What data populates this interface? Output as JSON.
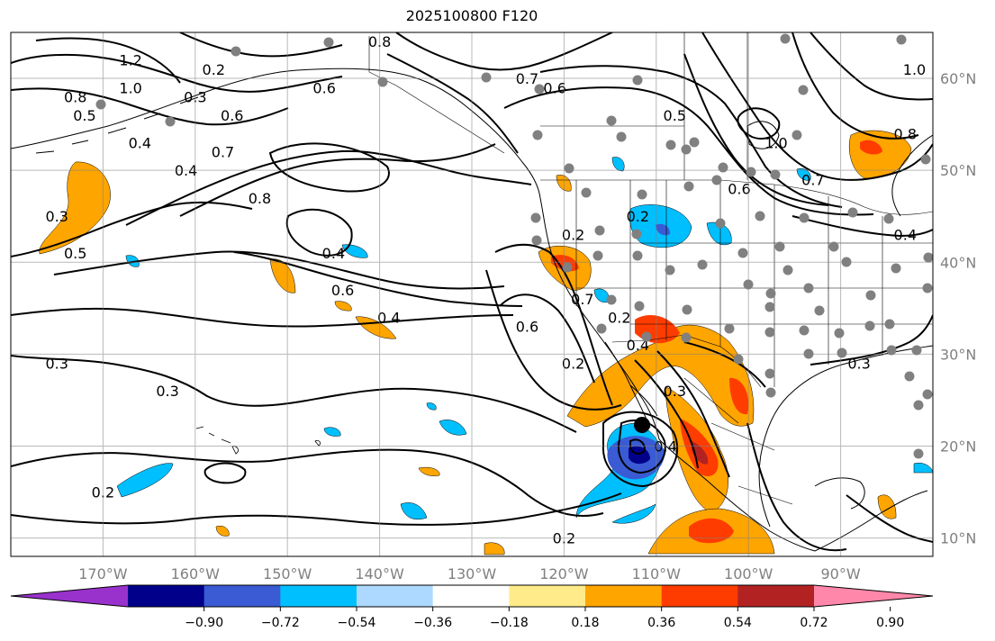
{
  "title": "2025100800 F120",
  "map": {
    "lon_min": -180,
    "lon_max": -80,
    "lat_min": 8,
    "lat_max": 65,
    "lon_ticks": [
      {
        "value": -170,
        "label": "170°W"
      },
      {
        "value": -160,
        "label": "160°W"
      },
      {
        "value": -150,
        "label": "150°W"
      },
      {
        "value": -140,
        "label": "140°W"
      },
      {
        "value": -130,
        "label": "130°W"
      },
      {
        "value": -120,
        "label": "120°W"
      },
      {
        "value": -110,
        "label": "110°W"
      },
      {
        "value": -100,
        "label": "100°W"
      },
      {
        "value": -90,
        "label": "90°W"
      }
    ],
    "lat_ticks": [
      {
        "value": 10,
        "label": "10°N"
      },
      {
        "value": 20,
        "label": "20°N"
      },
      {
        "value": 30,
        "label": "30°N"
      },
      {
        "value": 40,
        "label": "40°N"
      },
      {
        "value": 50,
        "label": "50°N"
      },
      {
        "value": 60,
        "label": "60°N"
      }
    ],
    "grid": true,
    "contour_labels": [
      {
        "text": "0.3",
        "lon": -175,
        "lat": 45
      },
      {
        "text": "0.5",
        "lon": -173,
        "lat": 41
      },
      {
        "text": "0.6",
        "lon": -156,
        "lat": 56
      },
      {
        "text": "0.8",
        "lon": -173,
        "lat": 58
      },
      {
        "text": "0.5",
        "lon": -172,
        "lat": 56
      },
      {
        "text": "0.4",
        "lon": -166,
        "lat": 53
      },
      {
        "text": "0.4",
        "lon": -161,
        "lat": 50
      },
      {
        "text": "0.7",
        "lon": -157,
        "lat": 52
      },
      {
        "text": "0.8",
        "lon": -153,
        "lat": 47
      },
      {
        "text": "1.0",
        "lon": -167,
        "lat": 59
      },
      {
        "text": "1.2",
        "lon": -167,
        "lat": 62
      },
      {
        "text": "0.2",
        "lon": -158,
        "lat": 61
      },
      {
        "text": "0.3",
        "lon": -160,
        "lat": 58
      },
      {
        "text": "0.6",
        "lon": -146,
        "lat": 59
      },
      {
        "text": "0.8",
        "lon": -140,
        "lat": 64
      },
      {
        "text": "0.7",
        "lon": -124,
        "lat": 60
      },
      {
        "text": "0.6",
        "lon": -121,
        "lat": 59
      },
      {
        "text": "0.5",
        "lon": -108,
        "lat": 56
      },
      {
        "text": "1.0",
        "lon": -97,
        "lat": 53
      },
      {
        "text": "0.8",
        "lon": -83,
        "lat": 54
      },
      {
        "text": "1.0",
        "lon": -82,
        "lat": 61
      },
      {
        "text": "0.7",
        "lon": -93,
        "lat": 49
      },
      {
        "text": "0.6",
        "lon": -101,
        "lat": 48
      },
      {
        "text": "0.4",
        "lon": -83,
        "lat": 43
      },
      {
        "text": "0.6",
        "lon": -144,
        "lat": 37
      },
      {
        "text": "0.4",
        "lon": -139,
        "lat": 34
      },
      {
        "text": "0.4",
        "lon": -145,
        "lat": 41
      },
      {
        "text": "0.3",
        "lon": -175,
        "lat": 29
      },
      {
        "text": "0.3",
        "lon": -163,
        "lat": 26
      },
      {
        "text": "0.3",
        "lon": -88,
        "lat": 29
      },
      {
        "text": "0.2",
        "lon": -120,
        "lat": 10
      },
      {
        "text": "0.2",
        "lon": -170,
        "lat": 15
      },
      {
        "text": "0.2",
        "lon": -119,
        "lat": 43
      },
      {
        "text": "0.7",
        "lon": -118,
        "lat": 36
      },
      {
        "text": "0.6",
        "lon": -124,
        "lat": 33
      },
      {
        "text": "0.2",
        "lon": -114,
        "lat": 34
      },
      {
        "text": "0.4",
        "lon": -112,
        "lat": 31
      },
      {
        "text": "0.3",
        "lon": -108,
        "lat": 26
      },
      {
        "text": "0.4",
        "lon": -109,
        "lat": 20
      },
      {
        "text": "0.2",
        "lon": -119,
        "lat": 29
      },
      {
        "text": "0.2",
        "lon": -112,
        "lat": 45
      }
    ]
  },
  "colorbar": {
    "ticks": [
      "−0.90",
      "−0.72",
      "−0.54",
      "−0.36",
      "−0.18",
      "0.18",
      "0.36",
      "0.54",
      "0.72",
      "0.90"
    ],
    "colors": [
      "#9932cc",
      "#00008b",
      "#3a5bd3",
      "#00bfff",
      "#add8ff",
      "#ffffff",
      "#ffeb8a",
      "#ffa500",
      "#ff3c00",
      "#b22222",
      "#ff88aa"
    ]
  }
}
